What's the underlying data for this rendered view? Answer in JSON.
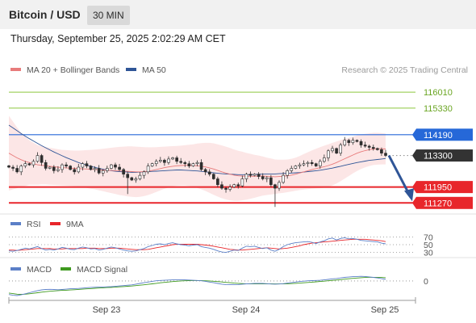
{
  "header": {
    "title": "Bitcoin / USD",
    "timeframe": "30 MIN",
    "datetime": "Thursday, September 25, 2025 2:02:29 AM CET"
  },
  "colors": {
    "candle": "#2e2e2e",
    "ma20": "#e87b7b",
    "bollinger_fill": "#fbdede",
    "ma50": "#2f5597",
    "resistance_green": "#8cc63f",
    "pivot_blue": "#2668d8",
    "support_red": "#e8262b",
    "current_label": "#333333",
    "arrow": "#2f5597",
    "rsi": "#5b7fc7",
    "rsi_ma": "#e8262b",
    "macd": "#5b7fc7",
    "macd_signal": "#3f9a1f"
  },
  "chart_data": [
    {
      "type": "candlestick",
      "legend": [
        {
          "label": "MA 20 + Bollinger Bands",
          "color": "#e87b7b"
        },
        {
          "label": "MA 50",
          "color": "#2f5597"
        }
      ],
      "watermark": "Research © 2025 Trading Central",
      "ylim": [
        110900,
        116500
      ],
      "levels": [
        {
          "value": 116010,
          "label": "116010",
          "kind": "resistance-2"
        },
        {
          "value": 115330,
          "label": "115330",
          "kind": "resistance-1"
        },
        {
          "value": 114190,
          "label": "114190",
          "kind": "pivot"
        },
        {
          "value": 113300,
          "label": "113300",
          "kind": "current"
        },
        {
          "value": 111950,
          "label": "111950",
          "kind": "support-1"
        },
        {
          "value": 111270,
          "label": "111270",
          "kind": "support-2"
        }
      ],
      "x_ticks": [
        "Sep 23",
        "Sep 24",
        "Sep 25"
      ],
      "close": [
        112800,
        112750,
        112600,
        112850,
        112950,
        112900,
        113050,
        113300,
        113000,
        112750,
        112800,
        112650,
        112700,
        112900,
        112850,
        112700,
        112600,
        112800,
        112950,
        112850,
        112700,
        112750,
        112550,
        112650,
        112750,
        112900,
        112800,
        112700,
        112500,
        112350,
        112250,
        112300,
        112450,
        112600,
        112850,
        112950,
        113050,
        113100,
        113000,
        113150,
        113200,
        113050,
        113000,
        112950,
        112850,
        112950,
        113000,
        112700,
        112600,
        112500,
        112300,
        112050,
        111900,
        111850,
        111950,
        112050,
        112000,
        112300,
        112500,
        112450,
        112500,
        112400,
        112300,
        112350,
        112050,
        111900,
        112150,
        112450,
        112650,
        112750,
        112850,
        112900,
        112950,
        113000,
        112950,
        112850,
        113050,
        113200,
        113500,
        113600,
        113400,
        113750,
        113950,
        113850,
        113950,
        113900,
        113750,
        113700,
        113650,
        113600,
        113550,
        113400,
        113300
      ],
      "ma20": [
        113400,
        113300,
        113200,
        113120,
        113050,
        113000,
        112950,
        112900,
        112880,
        112860,
        112840,
        112820,
        112800,
        112780,
        112770,
        112760,
        112750,
        112740,
        112730,
        112720,
        112710,
        112700,
        112690,
        112680,
        112670,
        112660,
        112650,
        112640,
        112630,
        112620,
        112610,
        112600,
        112600,
        112610,
        112630,
        112660,
        112700,
        112740,
        112780,
        112810,
        112840,
        112860,
        112870,
        112880,
        112880,
        112870,
        112860,
        112840,
        112810,
        112770,
        112720,
        112660,
        112600,
        112550,
        112500,
        112460,
        112430,
        112420,
        112410,
        112410,
        112410,
        112420,
        112420,
        112410,
        112400,
        112390,
        112400,
        112410,
        112430,
        112460,
        112500,
        112550,
        112600,
        112650,
        112700,
        112740,
        112780,
        112820,
        112870,
        112930,
        113000,
        113080,
        113160,
        113240,
        113320,
        113400,
        113460,
        113510,
        113550,
        113580,
        113590,
        113590,
        113580
      ],
      "ma50": [
        114600,
        114480,
        114360,
        114240,
        114130,
        114020,
        113920,
        113820,
        113720,
        113630,
        113540,
        113450,
        113370,
        113290,
        113210,
        113140,
        113070,
        113000,
        112940,
        112890,
        112840,
        112790,
        112750,
        112710,
        112680,
        112650,
        112630,
        112610,
        112600,
        112590,
        112580,
        112580,
        112590,
        112600,
        112610,
        112620,
        112630,
        112640,
        112650,
        112660,
        112670,
        112680,
        112680,
        112670,
        112660,
        112650,
        112640,
        112620,
        112600,
        112580,
        112560,
        112540,
        112520,
        112510,
        112500,
        112490,
        112480,
        112480,
        112480,
        112480,
        112490,
        112500,
        112500,
        112510,
        112510,
        112510,
        112520,
        112530,
        112540,
        112550,
        112560,
        112570,
        112590,
        112610,
        112630,
        112650,
        112670,
        112700,
        112730,
        112760,
        112800,
        112840,
        112880,
        112920,
        112960,
        113000,
        113030,
        113060,
        113090,
        113110,
        113130,
        113150,
        113170
      ],
      "bb_width": [
        1600,
        1450,
        1300,
        1150,
        1050,
        950,
        900,
        850,
        820,
        800,
        790,
        780,
        770,
        760,
        760,
        760,
        760,
        770,
        790,
        810,
        830,
        850,
        880,
        910,
        940,
        970,
        1000,
        1030,
        1050,
        1070,
        1080,
        1080,
        1070,
        1050,
        1020,
        990,
        960,
        930,
        900,
        880,
        860,
        850,
        850,
        860,
        880,
        910,
        950,
        990,
        1030,
        1070,
        1100,
        1120,
        1130,
        1130,
        1120,
        1100,
        1070,
        1040,
        1000,
        960,
        920,
        880,
        840,
        800,
        770,
        740,
        720,
        710,
        700,
        700,
        710,
        730,
        760,
        790,
        820,
        850,
        880,
        900,
        910,
        910,
        900,
        880,
        850,
        820,
        790,
        760,
        740,
        720,
        700,
        690,
        680,
        670,
        660
      ]
    },
    {
      "type": "line",
      "legend": [
        {
          "label": "RSI",
          "color": "#5b7fc7"
        },
        {
          "label": "9MA",
          "color": "#e8262b"
        }
      ],
      "ylim": [
        25,
        75
      ],
      "y_ticks": [
        "70",
        "50",
        "30"
      ],
      "rsi": [
        34,
        33,
        35,
        38,
        41,
        39,
        42,
        45,
        40,
        36,
        38,
        36,
        39,
        43,
        41,
        38,
        37,
        41,
        44,
        42,
        39,
        40,
        36,
        38,
        41,
        44,
        42,
        39,
        36,
        34,
        33,
        34,
        37,
        40,
        45,
        48,
        51,
        52,
        50,
        53,
        55,
        52,
        50,
        49,
        47,
        49,
        50,
        45,
        43,
        41,
        38,
        34,
        31,
        30,
        33,
        36,
        35,
        41,
        46,
        45,
        46,
        43,
        40,
        42,
        36,
        33,
        38,
        45,
        50,
        53,
        55,
        56,
        57,
        58,
        56,
        53,
        57,
        60,
        65,
        67,
        62,
        66,
        68,
        65,
        66,
        64,
        61,
        60,
        59,
        58,
        57,
        54,
        52
      ],
      "rsi_ma": [
        36,
        36,
        35,
        36,
        37,
        38,
        39,
        40,
        40,
        40,
        40,
        39,
        39,
        39,
        40,
        40,
        40,
        40,
        40,
        41,
        41,
        41,
        40,
        40,
        40,
        41,
        41,
        41,
        40,
        39,
        38,
        37,
        37,
        37,
        38,
        40,
        42,
        44,
        46,
        48,
        50,
        51,
        51,
        51,
        51,
        51,
        51,
        50,
        49,
        48,
        46,
        44,
        42,
        40,
        38,
        37,
        36,
        36,
        37,
        38,
        39,
        40,
        41,
        42,
        41,
        40,
        39,
        40,
        41,
        43,
        45,
        47,
        50,
        52,
        54,
        55,
        56,
        57,
        58,
        59,
        60,
        61,
        62,
        63,
        64,
        64,
        64,
        64,
        63,
        62,
        61,
        60,
        58
      ]
    },
    {
      "type": "line",
      "legend": [
        {
          "label": "MACD",
          "color": "#5b7fc7"
        },
        {
          "label": "MACD Signal",
          "color": "#3f9a1f"
        }
      ],
      "ylim": [
        -500,
        180
      ],
      "y_ticks": [
        "0"
      ],
      "macd": [
        -380,
        -400,
        -410,
        -390,
        -360,
        -330,
        -300,
        -270,
        -250,
        -240,
        -235,
        -240,
        -245,
        -240,
        -230,
        -220,
        -215,
        -210,
        -200,
        -190,
        -180,
        -175,
        -170,
        -170,
        -165,
        -160,
        -150,
        -140,
        -130,
        -120,
        -110,
        -90,
        -70,
        -50,
        -30,
        -10,
        5,
        15,
        20,
        25,
        30,
        35,
        35,
        30,
        25,
        20,
        15,
        5,
        -10,
        -30,
        -50,
        -70,
        -90,
        -100,
        -105,
        -105,
        -100,
        -90,
        -80,
        -75,
        -70,
        -70,
        -70,
        -75,
        -85,
        -90,
        -85,
        -75,
        -60,
        -45,
        -30,
        -15,
        -5,
        5,
        10,
        15,
        20,
        30,
        45,
        60,
        70,
        85,
        100,
        110,
        120,
        125,
        130,
        125,
        115,
        100,
        85,
        65,
        45
      ],
      "signal": [
        -340,
        -355,
        -370,
        -375,
        -370,
        -360,
        -345,
        -330,
        -315,
        -300,
        -290,
        -280,
        -270,
        -265,
        -260,
        -252,
        -245,
        -238,
        -230,
        -222,
        -214,
        -206,
        -198,
        -192,
        -186,
        -180,
        -173,
        -165,
        -157,
        -149,
        -141,
        -131,
        -120,
        -108,
        -94,
        -80,
        -66,
        -52,
        -40,
        -28,
        -17,
        -8,
        0,
        6,
        10,
        12,
        12,
        10,
        6,
        0,
        -8,
        -17,
        -28,
        -40,
        -50,
        -60,
        -68,
        -74,
        -78,
        -80,
        -80,
        -80,
        -80,
        -80,
        -81,
        -82,
        -83,
        -82,
        -79,
        -74,
        -68,
        -60,
        -52,
        -43,
        -34,
        -25,
        -16,
        -6,
        5,
        16,
        27,
        38,
        50,
        62,
        73,
        83,
        92,
        98,
        102,
        104,
        102,
        98,
        92
      ]
    }
  ]
}
